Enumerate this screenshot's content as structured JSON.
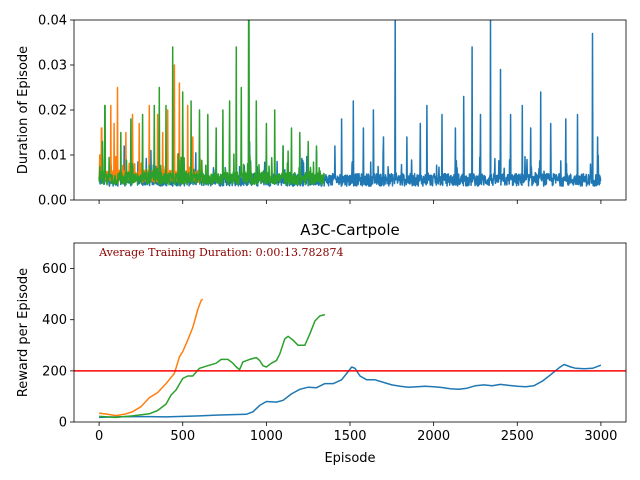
{
  "chart_data": [
    {
      "type": "line",
      "title": "",
      "xlabel": "",
      "ylabel": "Duration of Episode",
      "xlim": [
        -150,
        3150
      ],
      "ylim": [
        0.0,
        0.04
      ],
      "xticks": [
        0,
        500,
        1000,
        1500,
        2000,
        2500,
        3000
      ],
      "yticks": [
        0.0,
        0.01,
        0.02,
        0.03,
        0.04
      ],
      "ytick_labels": [
        "0.00",
        "0.01",
        "0.02",
        "0.03",
        "0.04"
      ],
      "xticks_labeled": false,
      "grid": false,
      "series": [
        {
          "color": "#1f77b4",
          "n_points": 3000,
          "baseline": 0.0042,
          "spikes": [
            [
              20,
              0.009
            ],
            [
              150,
              0.012
            ],
            [
              310,
              0.011
            ],
            [
              600,
              0.01
            ],
            [
              900,
              0.013
            ],
            [
              1100,
              0.012
            ],
            [
              1300,
              0.011
            ],
            [
              1410,
              0.012
            ],
            [
              1450,
              0.018
            ],
            [
              1520,
              0.022
            ],
            [
              1580,
              0.016
            ],
            [
              1640,
              0.02
            ],
            [
              1700,
              0.014
            ],
            [
              1770,
              0.04
            ],
            [
              1840,
              0.014
            ],
            [
              1920,
              0.017
            ],
            [
              1960,
              0.021
            ],
            [
              2050,
              0.019
            ],
            [
              2130,
              0.016
            ],
            [
              2180,
              0.023
            ],
            [
              2230,
              0.034
            ],
            [
              2280,
              0.019
            ],
            [
              2340,
              0.04
            ],
            [
              2400,
              0.029
            ],
            [
              2460,
              0.019
            ],
            [
              2530,
              0.021
            ],
            [
              2580,
              0.016
            ],
            [
              2640,
              0.024
            ],
            [
              2700,
              0.017
            ],
            [
              2790,
              0.018
            ],
            [
              2860,
              0.019
            ],
            [
              2950,
              0.037
            ],
            [
              2980,
              0.014
            ]
          ]
        },
        {
          "color": "#ff7f0e",
          "n_points": 620,
          "baseline": 0.005,
          "spikes": [
            [
              5,
              0.01
            ],
            [
              15,
              0.016
            ],
            [
              70,
              0.021
            ],
            [
              90,
              0.017
            ],
            [
              110,
              0.025
            ],
            [
              160,
              0.015
            ],
            [
              200,
              0.019
            ],
            [
              240,
              0.017
            ],
            [
              300,
              0.021
            ],
            [
              350,
              0.019
            ],
            [
              380,
              0.015
            ],
            [
              410,
              0.02
            ],
            [
              450,
              0.03
            ],
            [
              480,
              0.026
            ],
            [
              500,
              0.018
            ],
            [
              530,
              0.021
            ],
            [
              560,
              0.014
            ],
            [
              600,
              0.011
            ]
          ]
        },
        {
          "color": "#2ca02c",
          "n_points": 1350,
          "baseline": 0.0045,
          "spikes": [
            [
              20,
              0.013
            ],
            [
              35,
              0.021
            ],
            [
              130,
              0.015
            ],
            [
              190,
              0.018
            ],
            [
              260,
              0.019
            ],
            [
              330,
              0.021
            ],
            [
              360,
              0.025
            ],
            [
              400,
              0.021
            ],
            [
              440,
              0.034
            ],
            [
              500,
              0.024
            ],
            [
              550,
              0.022
            ],
            [
              600,
              0.02
            ],
            [
              650,
              0.019
            ],
            [
              700,
              0.016
            ],
            [
              740,
              0.02
            ],
            [
              780,
              0.022
            ],
            [
              820,
              0.034
            ],
            [
              850,
              0.025
            ],
            [
              895,
              0.04
            ],
            [
              940,
              0.022
            ],
            [
              1000,
              0.017
            ],
            [
              1050,
              0.02
            ],
            [
              1100,
              0.012
            ],
            [
              1150,
              0.016
            ],
            [
              1200,
              0.015
            ],
            [
              1250,
              0.013
            ],
            [
              1300,
              0.012
            ]
          ]
        }
      ]
    },
    {
      "type": "line",
      "title": "A3C-Cartpole",
      "annotation": "Average Training Duration: 0:00:13.782874",
      "xlabel": "Episode",
      "ylabel": "Reward per Episode",
      "xlim": [
        -150,
        3150
      ],
      "ylim": [
        0,
        700
      ],
      "xticks": [
        0,
        500,
        1000,
        1500,
        2000,
        2500,
        3000
      ],
      "xtick_labels": [
        "0",
        "500",
        "1000",
        "1500",
        "2000",
        "2500",
        "3000"
      ],
      "yticks": [
        0,
        200,
        400,
        600
      ],
      "ytick_labels": [
        "0",
        "200",
        "400",
        "600"
      ],
      "hline": {
        "y": 200,
        "color": "#ff0000"
      },
      "grid": false,
      "series": [
        {
          "color": "#1f77b4",
          "points": [
            [
              0,
              18
            ],
            [
              100,
              20
            ],
            [
              200,
              21
            ],
            [
              300,
              21
            ],
            [
              400,
              20
            ],
            [
              500,
              22
            ],
            [
              600,
              24
            ],
            [
              700,
              27
            ],
            [
              800,
              29
            ],
            [
              880,
              30
            ],
            [
              920,
              40
            ],
            [
              960,
              65
            ],
            [
              1000,
              80
            ],
            [
              1060,
              78
            ],
            [
              1100,
              85
            ],
            [
              1150,
              110
            ],
            [
              1200,
              128
            ],
            [
              1250,
              136
            ],
            [
              1300,
              134
            ],
            [
              1350,
              150
            ],
            [
              1400,
              150
            ],
            [
              1450,
              165
            ],
            [
              1480,
              190
            ],
            [
              1510,
              215
            ],
            [
              1530,
              210
            ],
            [
              1560,
              180
            ],
            [
              1600,
              165
            ],
            [
              1650,
              165
            ],
            [
              1700,
              155
            ],
            [
              1750,
              145
            ],
            [
              1800,
              140
            ],
            [
              1850,
              136
            ],
            [
              1900,
              138
            ],
            [
              1950,
              140
            ],
            [
              2000,
              138
            ],
            [
              2050,
              135
            ],
            [
              2100,
              130
            ],
            [
              2150,
              128
            ],
            [
              2200,
              132
            ],
            [
              2250,
              142
            ],
            [
              2300,
              145
            ],
            [
              2350,
              142
            ],
            [
              2400,
              147
            ],
            [
              2450,
              143
            ],
            [
              2500,
              140
            ],
            [
              2550,
              138
            ],
            [
              2600,
              142
            ],
            [
              2650,
              160
            ],
            [
              2700,
              185
            ],
            [
              2750,
              212
            ],
            [
              2780,
              225
            ],
            [
              2820,
              215
            ],
            [
              2850,
              210
            ],
            [
              2900,
              208
            ],
            [
              2950,
              210
            ],
            [
              3000,
              222
            ]
          ]
        },
        {
          "color": "#ff7f0e",
          "points": [
            [
              0,
              35
            ],
            [
              50,
              30
            ],
            [
              100,
              25
            ],
            [
              150,
              30
            ],
            [
              200,
              40
            ],
            [
              250,
              60
            ],
            [
              300,
              95
            ],
            [
              350,
              115
            ],
            [
              400,
              150
            ],
            [
              450,
              190
            ],
            [
              480,
              255
            ],
            [
              500,
              275
            ],
            [
              530,
              320
            ],
            [
              560,
              370
            ],
            [
              590,
              440
            ],
            [
              610,
              475
            ],
            [
              620,
              480
            ]
          ]
        },
        {
          "color": "#2ca02c",
          "points": [
            [
              0,
              22
            ],
            [
              100,
              18
            ],
            [
              200,
              24
            ],
            [
              300,
              32
            ],
            [
              350,
              45
            ],
            [
              400,
              70
            ],
            [
              430,
              105
            ],
            [
              460,
              125
            ],
            [
              500,
              170
            ],
            [
              530,
              180
            ],
            [
              560,
              180
            ],
            [
              600,
              210
            ],
            [
              650,
              220
            ],
            [
              700,
              230
            ],
            [
              730,
              245
            ],
            [
              770,
              245
            ],
            [
              800,
              230
            ],
            [
              820,
              215
            ],
            [
              840,
              205
            ],
            [
              860,
              235
            ],
            [
              900,
              245
            ],
            [
              940,
              252
            ],
            [
              960,
              240
            ],
            [
              980,
              220
            ],
            [
              1000,
              215
            ],
            [
              1030,
              230
            ],
            [
              1060,
              240
            ],
            [
              1080,
              265
            ],
            [
              1110,
              325
            ],
            [
              1130,
              335
            ],
            [
              1160,
              320
            ],
            [
              1190,
              300
            ],
            [
              1230,
              300
            ],
            [
              1260,
              345
            ],
            [
              1290,
              395
            ],
            [
              1320,
              415
            ],
            [
              1350,
              420
            ]
          ]
        }
      ]
    }
  ]
}
